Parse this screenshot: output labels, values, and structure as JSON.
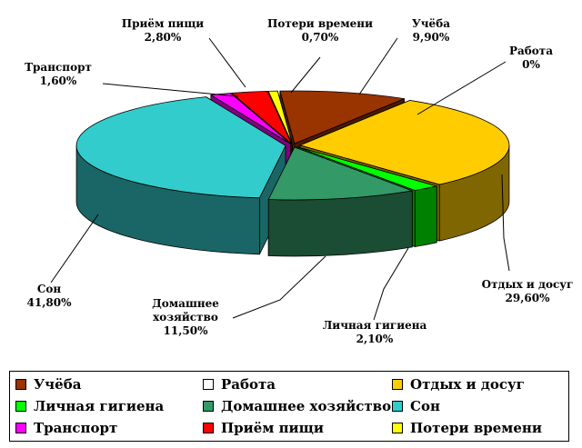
{
  "chart_data": {
    "type": "pie",
    "subtype": "3d-exploded",
    "title": "",
    "legend_position": "bottom",
    "slices": [
      {
        "name": "Учёба",
        "value": 9.9,
        "label_value": "9,90%",
        "color": "#993300",
        "side": "#4c1a00"
      },
      {
        "name": "Работа",
        "value": 0,
        "label_value": "0%",
        "color": "#ffffff",
        "side": "#bfbfbf"
      },
      {
        "name": "Отдых и досуг",
        "value": 29.6,
        "label_value": "29,60%",
        "color": "#ffcc00",
        "side": "#806600"
      },
      {
        "name": "Личная гигиена",
        "value": 2.1,
        "label_value": "2,10%",
        "color": "#00ff00",
        "side": "#008000"
      },
      {
        "name": "Домашнее хозяйство",
        "value": 11.5,
        "label_value": "11,50%",
        "color": "#339966",
        "side": "#1a4d33"
      },
      {
        "name": "Сон",
        "value": 41.8,
        "label_value": "41,80%",
        "color": "#33cccc",
        "side": "#1a6666"
      },
      {
        "name": "Транспорт",
        "value": 1.6,
        "label_value": "1,60%",
        "color": "#ff00ff",
        "side": "#800080"
      },
      {
        "name": "Приём пищи",
        "value": 2.8,
        "label_value": "2,80%",
        "color": "#ff0000",
        "side": "#800000"
      },
      {
        "name": "Потери времени",
        "value": 0.7,
        "label_value": "0,70%",
        "color": "#ffff00",
        "side": "#808000"
      }
    ]
  },
  "chart_labels": [
    {
      "lines": [
        "Учёба",
        "9,90%"
      ]
    },
    {
      "lines": [
        "Работа",
        "0%"
      ]
    },
    {
      "lines": [
        "Отдых и досуг",
        "29,60%"
      ]
    },
    {
      "lines": [
        "Личная гигиена",
        "2,10%"
      ]
    },
    {
      "lines": [
        "Домашнее",
        "хозяйство",
        "11,50%"
      ]
    },
    {
      "lines": [
        "Сон",
        "41,80%"
      ]
    },
    {
      "lines": [
        "Транспорт",
        "1,60%"
      ]
    },
    {
      "lines": [
        "Приём пищи",
        "2,80%"
      ]
    },
    {
      "lines": [
        "Потери времени",
        "0,70%"
      ]
    }
  ]
}
